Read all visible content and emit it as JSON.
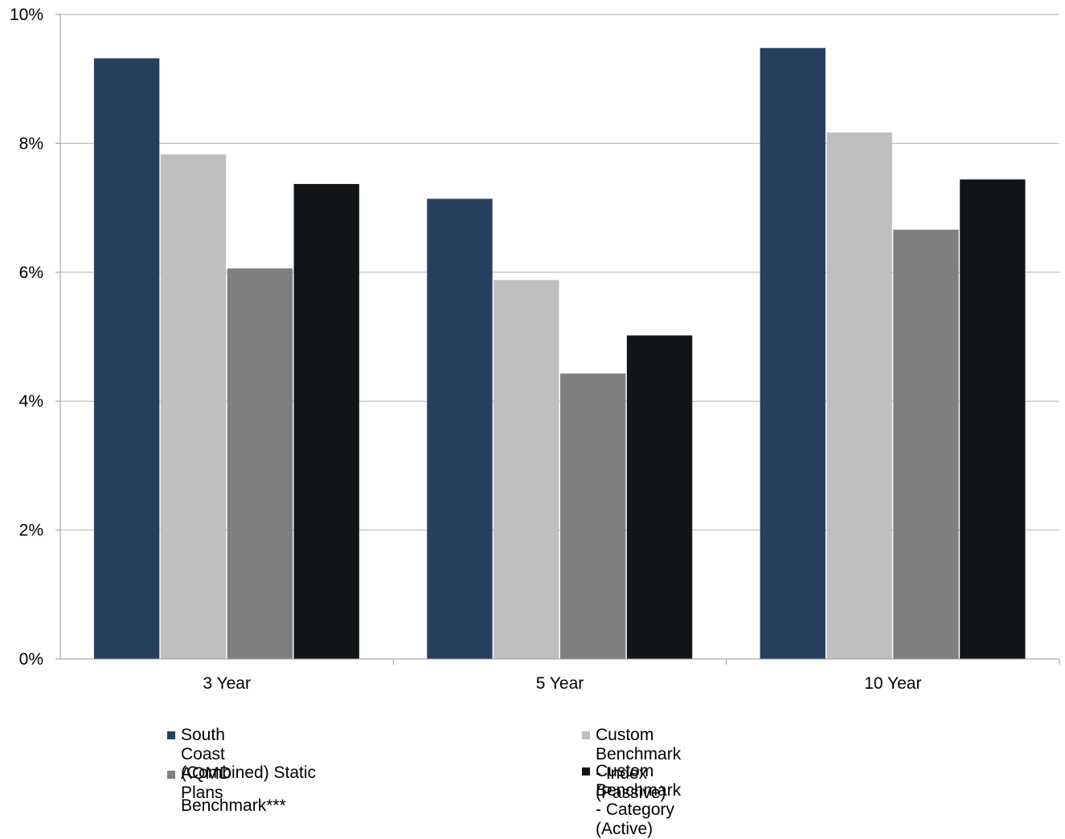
{
  "chart_data": {
    "type": "bar",
    "categories": [
      "3 Year",
      "5 Year",
      "10 Year"
    ],
    "ylim": [
      0,
      10
    ],
    "yticks": [
      "0%",
      "2%",
      "4%",
      "6%",
      "8%",
      "10%"
    ],
    "ytick_values": [
      0,
      2,
      4,
      6,
      8,
      10
    ],
    "grid": true,
    "legend_position": "bottom",
    "series": [
      {
        "name": "South Coast AQMD Plans",
        "values": [
          9.32,
          7.14,
          9.48
        ],
        "color": "#274060"
      },
      {
        "name": "Custom Benchmark - Index (Passive)",
        "values": [
          7.83,
          5.88,
          8.17
        ],
        "color": "#bfbfbf"
      },
      {
        "name": "(Combined) Static Benchmark***",
        "values": [
          6.06,
          4.43,
          6.66
        ],
        "color": "#7f7f7f"
      },
      {
        "name": "Custom Benchmark - Category (Active)",
        "values": [
          7.37,
          5.02,
          7.44
        ],
        "color": "#111518"
      }
    ]
  }
}
